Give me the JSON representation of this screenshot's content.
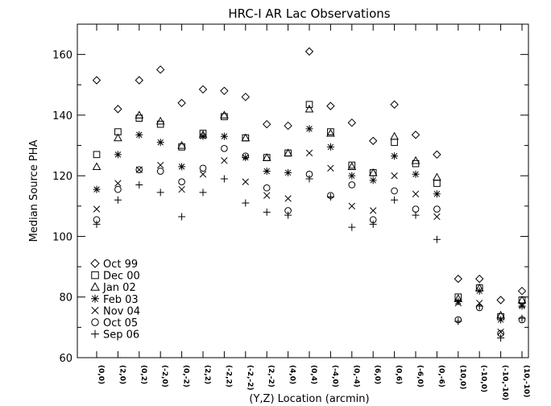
{
  "chart_data": {
    "type": "scatter",
    "title": "HRC-I AR Lac Observations",
    "xlabel": "(Y,Z) Location (arcmin)",
    "ylabel": "Median Source PHA",
    "ylim": [
      60,
      170
    ],
    "yticks": [
      60,
      80,
      100,
      120,
      140,
      160
    ],
    "grid": false,
    "legend_position": "bottom-left",
    "categories": [
      "(0,0)",
      "(2,0)",
      "(0,2)",
      "(-2,0)",
      "(0,-2)",
      "(2,2)",
      "(-2,2)",
      "(-2,-2)",
      "(2,-2)",
      "(4,0)",
      "(0,4)",
      "(-4,0)",
      "(0,-4)",
      "(6,0)",
      "(0,6)",
      "(-6,0)",
      "(0,-6)",
      "(10,0)",
      "(-10,0)",
      "(-10,-10)",
      "(10,-10)"
    ],
    "series": [
      {
        "name": "Oct 99",
        "marker": "diamond",
        "values": [
          151.5,
          142,
          151.5,
          155,
          144,
          148.5,
          148,
          146,
          137,
          136.5,
          161,
          143,
          137.5,
          131.5,
          143.5,
          133.5,
          127,
          86,
          86,
          79,
          82
        ]
      },
      {
        "name": "Dec 00",
        "marker": "square",
        "values": [
          127,
          134.5,
          139,
          137,
          129.5,
          134,
          139.5,
          132.5,
          126,
          127.5,
          143.5,
          134.5,
          123.5,
          121,
          131,
          124,
          117.5,
          80,
          83,
          73.5,
          79
        ]
      },
      {
        "name": "Jan 02",
        "marker": "triangle",
        "values": [
          123,
          132.5,
          140,
          138,
          130,
          133.5,
          140,
          132.5,
          126,
          127.5,
          142,
          134,
          123,
          121,
          133,
          125,
          119.5,
          79.5,
          83,
          74,
          79
        ]
      },
      {
        "name": "Feb 03",
        "marker": "asterisk",
        "values": [
          115.5,
          127,
          133.5,
          131,
          123,
          133,
          133,
          126,
          121.5,
          121,
          135.5,
          129.5,
          120,
          118.5,
          126.5,
          120.5,
          114,
          78.5,
          82,
          72.5,
          77
        ]
      },
      {
        "name": "Nov 04",
        "marker": "cross",
        "values": [
          109,
          117.5,
          122,
          123.5,
          115.5,
          120.5,
          125,
          118,
          113.5,
          112.5,
          127.5,
          122.5,
          110,
          108.5,
          120,
          114,
          106.5,
          78,
          78,
          68.5,
          77.5
        ]
      },
      {
        "name": "Oct 05",
        "marker": "circle",
        "values": [
          105.5,
          115.5,
          122,
          121.5,
          118,
          122.5,
          129,
          126.5,
          116,
          108.5,
          120.5,
          113.5,
          117,
          105.5,
          115,
          109,
          109,
          72.5,
          76.5,
          68,
          72.5
        ]
      },
      {
        "name": "Sep 06",
        "marker": "plus",
        "values": [
          104,
          112,
          117,
          114.5,
          106.5,
          114.5,
          119,
          111,
          108,
          107,
          119,
          113,
          103,
          104,
          112,
          107,
          99,
          72,
          77,
          66.5,
          73
        ]
      }
    ]
  }
}
